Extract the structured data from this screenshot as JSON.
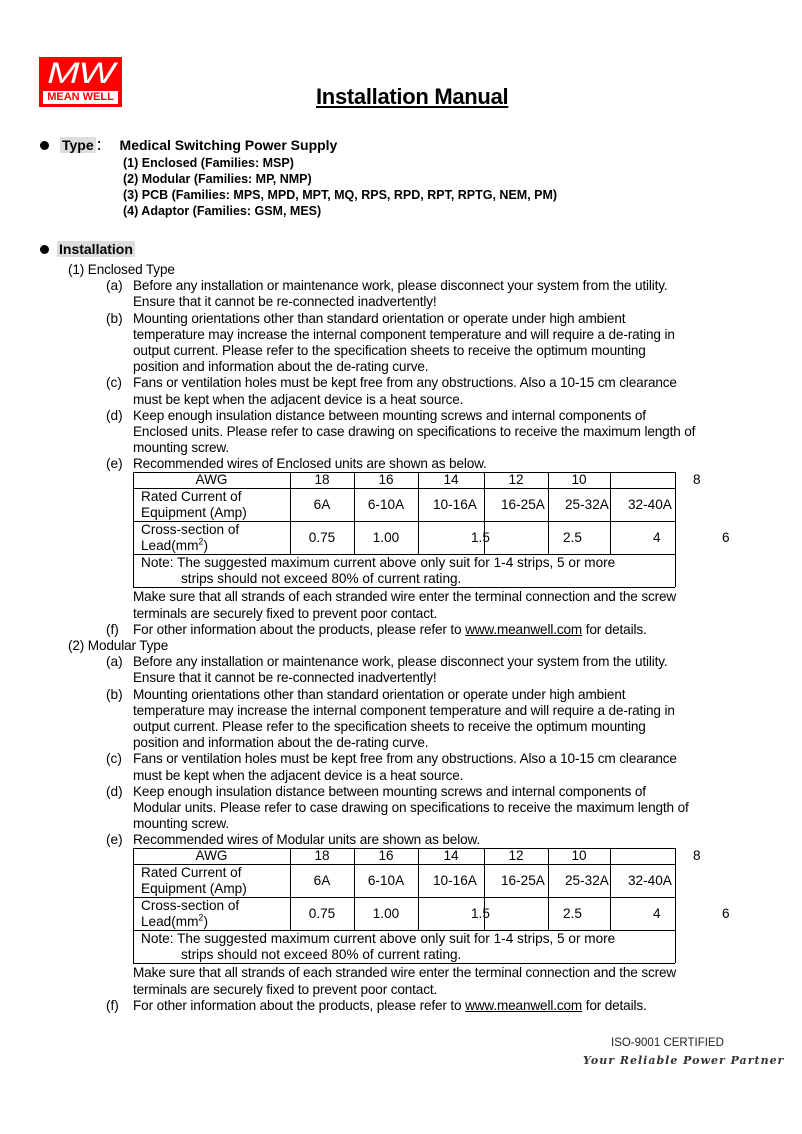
{
  "logo": {
    "text": "MW",
    "brand": "MEAN WELL",
    "color": "#ff0000"
  },
  "title": "Installation Manual",
  "type": {
    "label": "Type",
    "sep": "：",
    "value": "Medical Switching Power Supply",
    "items": [
      "(1)  Enclosed (Families: MSP)",
      "(2)  Modular (Families: MP, NMP)",
      "(3)   PCB (Families: MPS, MPD, MPT, MQ, RPS, RPD, RPT, RPTG, NEM, PM)",
      "(4)  Adaptor (Families: GSM, MES)"
    ]
  },
  "installation": {
    "label": "Installation",
    "sections": [
      {
        "heading": "(1)  Enclosed Type",
        "items": [
          {
            "label": "(a)",
            "lines": [
              "Before any installation or maintenance work, please disconnect your system from the utility.",
              "Ensure that it cannot be re-connected inadvertently!"
            ]
          },
          {
            "label": "(b)",
            "lines": [
              "Mounting orientations other than standard orientation or operate under high ambient",
              "temperature may increase the internal component temperature and will require a de-rating in",
              "output current. Please refer to the specification sheets to receive the optimum mounting",
              "position and information about the de-rating curve."
            ]
          },
          {
            "label": "(c)",
            "lines": [
              "Fans or ventilation holes must be kept free from any obstructions. Also a 10-15 cm clearance",
              "must be kept when the adjacent device is a heat source."
            ]
          },
          {
            "label": "(d)",
            "lines": [
              "Keep enough insulation distance between mounting screws and internal components of",
              "Enclosed units. Please refer to case drawing on specifications to receive the maximum length of",
              "mounting screw."
            ]
          },
          {
            "label": "(e)",
            "lines": [
              "Recommended wires of Enclosed units are shown as below."
            ],
            "table": true,
            "after": [
              "Make sure that all strands of each stranded wire enter the terminal connection and the screw",
              "terminals are securely fixed to prevent poor contact."
            ]
          },
          {
            "label": "(f)",
            "link_item": true,
            "pre": "For other information about the products, please refer to ",
            "link": "www.meanwell.com",
            "post": " for details."
          }
        ]
      },
      {
        "heading": "(2)  Modular Type",
        "items": [
          {
            "label": "(a)",
            "lines": [
              "Before any installation or maintenance work, please disconnect your system from the utility.",
              "Ensure that it cannot be re-connected inadvertently!"
            ]
          },
          {
            "label": "(b)",
            "lines": [
              "Mounting orientations other than standard orientation or operate under high ambient",
              "temperature may increase the internal component temperature and will require a de-rating in",
              "output current. Please refer to the specification sheets to receive the optimum mounting",
              "position and information about the de-rating curve."
            ]
          },
          {
            "label": "(c)",
            "lines": [
              "Fans or ventilation holes must be kept free from any obstructions. Also a 10-15 cm clearance",
              "must be kept when the adjacent device is a heat source."
            ]
          },
          {
            "label": "(d)",
            "lines": [
              "Keep enough insulation distance between mounting screws and internal components of",
              "Modular units. Please refer to case drawing on specifications to receive the maximum length of",
              "mounting screw."
            ]
          },
          {
            "label": "(e)",
            "lines": [
              "Recommended wires of Modular units are shown as below."
            ],
            "table": true,
            "after": [
              "Make sure that all strands of each stranded wire enter the terminal connection and the screw",
              "terminals are securely fixed to prevent poor contact."
            ]
          },
          {
            "label": "(f)",
            "link_item": true,
            "pre": "For other information about the products, please refer to ",
            "link": "www.meanwell.com",
            "post": " for details."
          }
        ]
      }
    ]
  },
  "wire_table": {
    "awg_header": "AWG",
    "awg": [
      "18",
      "16",
      "14",
      "12",
      "10",
      "8"
    ],
    "current_header": [
      "Rated Current of",
      "Equipment (Amp)"
    ],
    "current": [
      "6A",
      "6-10A",
      "10-16A",
      "16-25A",
      "25-32A",
      "32-40A"
    ],
    "section_header": [
      "Cross-section of",
      "Lead(mm",
      ")"
    ],
    "sup": "2",
    "section": [
      "0.75",
      "1.00",
      "1.5",
      "2.5",
      "4",
      "6"
    ],
    "note": [
      "Note: The suggested maximum current above only suit for 1-4 strips, 5 or more",
      "strips should not exceed 80% of current rating."
    ]
  },
  "footer": {
    "iso": "ISO-9001 CERTIFIED",
    "slogan": "Your Reliable Power Partner"
  }
}
